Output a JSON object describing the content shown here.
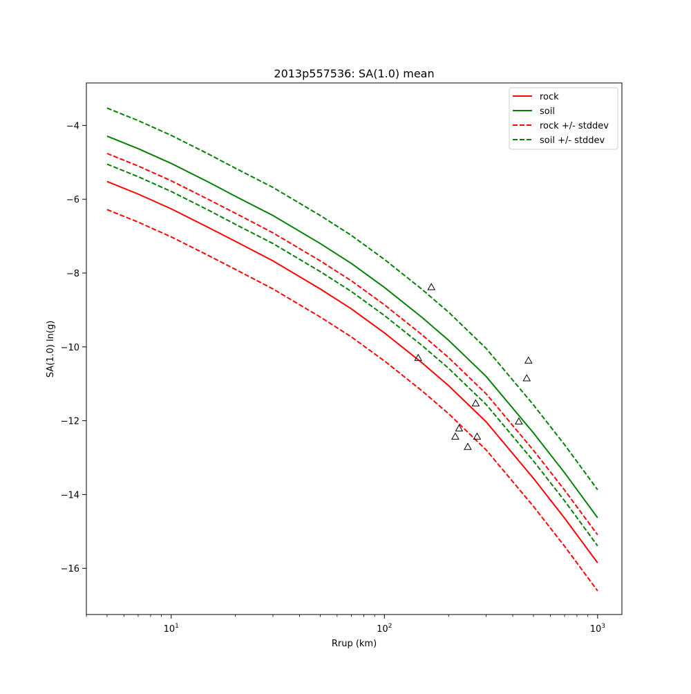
{
  "chart_data": {
    "type": "line",
    "title": "2013p557536: SA(1.0) mean",
    "xlabel": "Rrup (km)",
    "ylabel": "SA(1.0) ln(g)",
    "xscale": "log",
    "xlim": [
      4.0,
      1300
    ],
    "ylim": [
      -17.25,
      -2.85
    ],
    "x_ticks": [
      {
        "value": 10,
        "base": "10",
        "exp": "1"
      },
      {
        "value": 100,
        "base": "10",
        "exp": "2"
      },
      {
        "value": 1000,
        "base": "10",
        "exp": "3"
      }
    ],
    "y_ticks": [
      {
        "value": -4,
        "label": "−4"
      },
      {
        "value": -6,
        "label": "−6"
      },
      {
        "value": -8,
        "label": "−8"
      },
      {
        "value": -10,
        "label": "−10"
      },
      {
        "value": -12,
        "label": "−12"
      },
      {
        "value": -14,
        "label": "−14"
      },
      {
        "value": -16,
        "label": "−16"
      }
    ],
    "grid": false,
    "legend_position": "top-right",
    "x": [
      5,
      7,
      10,
      15,
      20,
      30,
      50,
      70,
      100,
      150,
      200,
      300,
      500,
      700,
      1000
    ],
    "series": [
      {
        "name": "rock",
        "color": "#ff0000",
        "dash": "solid",
        "legend": true,
        "values": [
          -5.52,
          -5.86,
          -6.26,
          -6.77,
          -7.14,
          -7.67,
          -8.43,
          -8.97,
          -9.62,
          -10.43,
          -11.05,
          -12.03,
          -13.56,
          -14.64,
          -15.85
        ]
      },
      {
        "name": "soil",
        "color": "#008000",
        "dash": "solid",
        "legend": true,
        "values": [
          -4.29,
          -4.63,
          -5.03,
          -5.54,
          -5.92,
          -6.44,
          -7.2,
          -7.74,
          -8.39,
          -9.2,
          -9.82,
          -10.8,
          -12.33,
          -13.41,
          -14.63
        ]
      },
      {
        "name": "rock +/- stddev",
        "color": "#ff0000",
        "dash": "dashed",
        "legend": true,
        "values": [
          -4.76,
          -5.1,
          -5.5,
          -6.01,
          -6.38,
          -6.91,
          -7.67,
          -8.21,
          -8.86,
          -9.67,
          -10.29,
          -11.27,
          -12.8,
          -13.88,
          -15.09
        ]
      },
      {
        "name": "",
        "color": "#ff0000",
        "dash": "dashed",
        "legend": false,
        "values": [
          -6.28,
          -6.62,
          -7.02,
          -7.53,
          -7.9,
          -8.43,
          -9.19,
          -9.73,
          -10.38,
          -11.19,
          -11.81,
          -12.79,
          -14.32,
          -15.4,
          -16.61
        ]
      },
      {
        "name": "soil +/- stddev",
        "color": "#008000",
        "dash": "dashed",
        "legend": true,
        "values": [
          -3.53,
          -3.87,
          -4.27,
          -4.78,
          -5.16,
          -5.68,
          -6.44,
          -6.98,
          -7.63,
          -8.44,
          -9.06,
          -10.04,
          -11.57,
          -12.65,
          -13.87
        ]
      },
      {
        "name": "",
        "color": "#008000",
        "dash": "dashed",
        "legend": false,
        "values": [
          -5.05,
          -5.39,
          -5.79,
          -6.3,
          -6.68,
          -7.2,
          -7.96,
          -8.5,
          -9.15,
          -9.96,
          -10.58,
          -11.56,
          -13.09,
          -14.17,
          -15.39
        ]
      }
    ],
    "observations": {
      "marker": "triangle",
      "points": [
        {
          "x": 144,
          "y": -10.3
        },
        {
          "x": 166,
          "y": -8.38
        },
        {
          "x": 215,
          "y": -12.43
        },
        {
          "x": 224,
          "y": -12.21
        },
        {
          "x": 246,
          "y": -12.71
        },
        {
          "x": 268,
          "y": -11.53
        },
        {
          "x": 272,
          "y": -12.43
        },
        {
          "x": 427,
          "y": -12.02
        },
        {
          "x": 465,
          "y": -10.85
        },
        {
          "x": 474,
          "y": -10.37
        }
      ]
    }
  }
}
